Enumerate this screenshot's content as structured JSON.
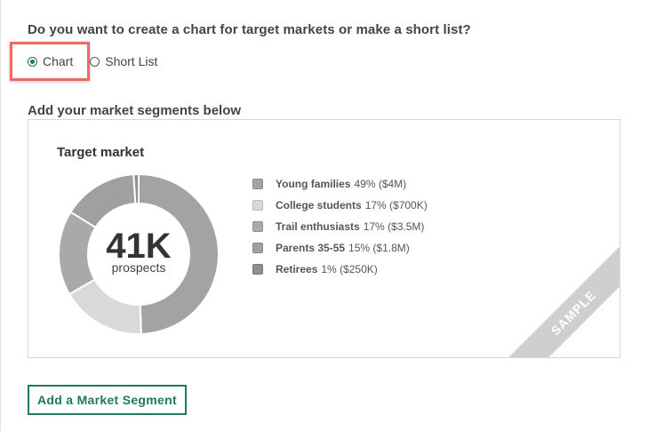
{
  "question": "Do you want to create a chart for target markets or make a short list?",
  "options": {
    "chart_label": "Chart",
    "shortlist_label": "Short List",
    "selected": "Chart"
  },
  "segments_heading": "Add your market segments below",
  "chart": {
    "title": "Target market",
    "center_value": "41K",
    "center_label": "prospects",
    "sample_label": "SAMPLE"
  },
  "chart_data": {
    "type": "pie",
    "title": "Target market",
    "categories": [
      "Young families",
      "College students",
      "Trail enthusiasts",
      "Parents 35-55",
      "Retirees"
    ],
    "values": [
      49,
      17,
      17,
      15,
      1
    ],
    "details": [
      "49% ($4M)",
      "17% ($700K)",
      "17% ($3.5M)",
      "15% ($1.8M)",
      "1% ($250K)"
    ],
    "colors": [
      "#a3a3a3",
      "#d9d9d9",
      "#a9a9a9",
      "#a0a0a0",
      "#8f8f8f"
    ],
    "center_text": "41K",
    "center_subtext": "prospects",
    "legend_position": "right"
  },
  "add_button_label": "Add a Market Segment",
  "accent_color": "#1d7a5c",
  "highlight_color": "#ef6b5c"
}
